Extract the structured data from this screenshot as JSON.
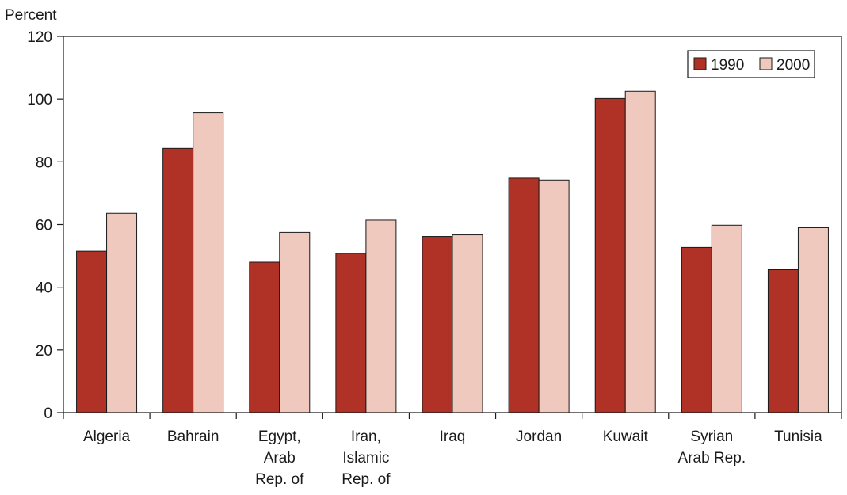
{
  "chart_data": {
    "type": "bar",
    "title": "",
    "xlabel": "",
    "ylabel": "Percent",
    "ylim": [
      0,
      120
    ],
    "yticks": [
      0,
      20,
      40,
      60,
      80,
      100,
      120
    ],
    "grid": false,
    "legend_position": "top-right",
    "categories": [
      [
        "Algeria"
      ],
      [
        "Bahrain"
      ],
      [
        "Egypt,",
        "Arab",
        "Rep. of"
      ],
      [
        "Iran,",
        "Islamic",
        "Rep. of"
      ],
      [
        "Iraq"
      ],
      [
        "Jordan"
      ],
      [
        "Kuwait"
      ],
      [
        "Syrian",
        "Arab Rep."
      ],
      [
        "Tunisia"
      ]
    ],
    "series": [
      {
        "name": "1990",
        "color": "#b03226",
        "values": [
          51.5,
          84.3,
          48,
          50.8,
          56.2,
          74.8,
          100.2,
          52.7,
          45.6
        ]
      },
      {
        "name": "2000",
        "color": "#efc9be",
        "values": [
          63.6,
          95.6,
          57.5,
          61.4,
          56.7,
          74.2,
          102.5,
          59.8,
          59
        ]
      }
    ]
  }
}
